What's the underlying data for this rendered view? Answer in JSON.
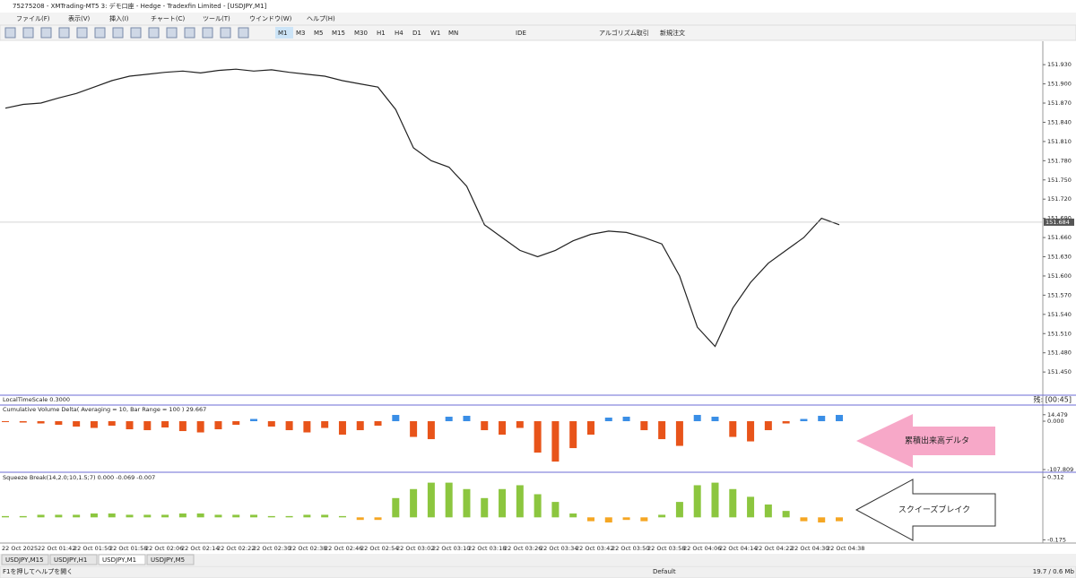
{
  "window": {
    "title": "75275208 - XMTrading-MT5 3: デモ口座 - Hedge - Tradexfin Limited - [USDJPY,M1]"
  },
  "menu": [
    "ファイル(F)",
    "表示(V)",
    "挿入(I)",
    "チャート(C)",
    "ツール(T)",
    "ウインドウ(W)",
    "ヘルプ(H)"
  ],
  "toolbar": {
    "timeframes": [
      "M1",
      "M3",
      "M5",
      "M15",
      "M30",
      "H1",
      "H4",
      "D1",
      "W1",
      "MN"
    ],
    "buttons": [
      "IDE",
      "アルゴリズム取引",
      "新規注文"
    ]
  },
  "chart_data": [
    {
      "type": "line",
      "color": "#222222",
      "values": [
        151.862,
        151.868,
        151.87,
        151.878,
        151.885,
        151.895,
        151.905,
        151.912,
        151.915,
        151.918,
        151.92,
        151.917,
        151.921,
        151.923,
        151.92,
        151.922,
        151.918,
        151.915,
        151.912,
        151.905,
        151.9,
        151.895,
        151.86,
        151.8,
        151.78,
        151.77,
        151.74,
        151.68,
        151.66,
        151.64,
        151.63,
        151.64,
        151.655,
        151.665,
        151.67,
        151.668,
        151.66,
        151.65,
        151.6,
        151.52,
        151.49,
        151.55,
        151.59,
        151.62,
        151.64,
        151.66,
        151.69,
        151.68
      ],
      "ylim": [
        151.418,
        151.961
      ],
      "yticks": [
        {
          "value": 151.93,
          "label": "151.930"
        },
        {
          "value": 151.9,
          "label": "151.900"
        },
        {
          "value": 151.87,
          "label": "151.870"
        },
        {
          "value": 151.84,
          "label": "151.840"
        },
        {
          "value": 151.81,
          "label": "151.810"
        },
        {
          "value": 151.78,
          "label": "151.780"
        },
        {
          "value": 151.75,
          "label": "151.750"
        },
        {
          "value": 151.72,
          "label": "151.720"
        },
        {
          "value": 151.69,
          "label": "151.690"
        },
        {
          "value": 151.66,
          "label": "151.660"
        },
        {
          "value": 151.63,
          "label": "151.630"
        },
        {
          "value": 151.6,
          "label": "151.600"
        },
        {
          "value": 151.57,
          "label": "151.570"
        },
        {
          "value": 151.54,
          "label": "151.540"
        },
        {
          "value": 151.51,
          "label": "151.510"
        },
        {
          "value": 151.48,
          "label": "151.480"
        },
        {
          "value": 151.45,
          "label": "151.450"
        }
      ],
      "bid": {
        "value": 151.684,
        "label": "151.684"
      },
      "time_axis": [
        "22 Oct 2025",
        "22 Oct 01:42",
        "22 Oct 01:50",
        "22 Oct 01:58",
        "22 Oct 02:06",
        "22 Oct 02:14",
        "22 Oct 02:22",
        "22 Oct 02:30",
        "22 Oct 02:38",
        "22 Oct 02:46",
        "22 Oct 02:54",
        "22 Oct 03:02",
        "22 Oct 03:10",
        "22 Oct 03:18",
        "22 Oct 03:26",
        "22 Oct 03:34",
        "22 Oct 03:42",
        "22 Oct 03:50",
        "22 Oct 03:58",
        "22 Oct 04:06",
        "22 Oct 04:14",
        "22 Oct 04:22",
        "22 Oct 04:30",
        "22 Oct 04:38"
      ]
    },
    {
      "type": "bar",
      "title": "Cumulative Volume Delta( Averaging = 10, Bar Range = 100 ) 29.667",
      "colors": {
        "positive": "#3a8ee6",
        "negative": "#e8541a"
      },
      "values": [
        -2,
        -3,
        -5,
        -8,
        -12,
        -15,
        -10,
        -18,
        -20,
        -14,
        -22,
        -25,
        -18,
        -8,
        5,
        -12,
        -20,
        -25,
        -15,
        -30,
        -20,
        -10,
        14,
        -35,
        -40,
        10,
        12,
        -20,
        -30,
        -15,
        -70,
        -90,
        -60,
        -30,
        8,
        10,
        -20,
        -40,
        -55,
        14,
        10,
        -35,
        -45,
        -20,
        -5,
        5,
        12,
        14
      ],
      "ylim": [
        -107.809,
        30
      ],
      "yticks": [
        {
          "value": 14.479,
          "label": "14.479"
        },
        {
          "value": 0,
          "label": "0.000"
        },
        {
          "value": -107.809,
          "label": "-107.809"
        }
      ],
      "annotation": "累積出来高デルタ"
    },
    {
      "type": "bar",
      "title": "Squeeze Break(14,2.0;10,1.5;7) 0.000 -0.069 -0.007",
      "colors": {
        "positive": "#8cc63f",
        "negative": "#f5a623"
      },
      "values": [
        0.01,
        0.01,
        0.02,
        0.02,
        0.02,
        0.03,
        0.03,
        0.02,
        0.02,
        0.02,
        0.03,
        0.03,
        0.02,
        0.02,
        0.02,
        0.01,
        0.01,
        0.02,
        0.02,
        0.01,
        -0.02,
        -0.02,
        0.15,
        0.22,
        0.27,
        0.27,
        0.22,
        0.15,
        0.22,
        0.25,
        0.18,
        0.12,
        0.03,
        -0.03,
        -0.04,
        -0.02,
        -0.03,
        0.02,
        0.12,
        0.25,
        0.27,
        0.22,
        0.16,
        0.1,
        0.05,
        -0.03,
        -0.04,
        -0.03
      ],
      "ylim": [
        -0.2,
        0.33
      ],
      "yticks": [
        {
          "value": 0.312,
          "label": "0.312"
        },
        {
          "value": -0.175,
          "label": "-0.175"
        }
      ],
      "annotation": "スクイーズブレイク"
    }
  ],
  "local_time_scale": {
    "label": "LocalTimeScale 0.3000",
    "timer": "残: [00:45]"
  },
  "tabs": [
    "USDJPY,M15",
    "USDJPY,H1",
    "USDJPY,M1",
    "USDJPY,M5"
  ],
  "status": {
    "help": "F1を押してヘルプを開く",
    "profile": "Default",
    "memory": "19.7 / 0.6 Mb"
  }
}
